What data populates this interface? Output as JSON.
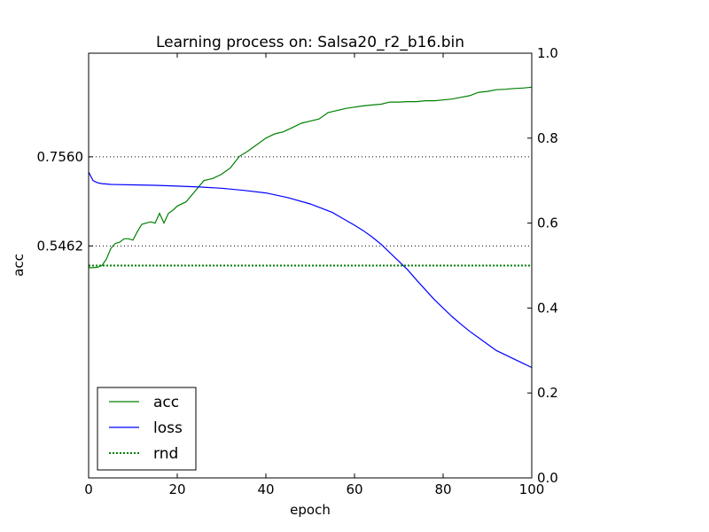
{
  "chart_data": {
    "type": "line",
    "title": "Learning process on: Salsa20_r2_b16.bin",
    "xlabel": "epoch",
    "ylabel": "acc",
    "x_ticks": [
      "0",
      "20",
      "40",
      "60",
      "80",
      "100"
    ],
    "left_ticks": [
      "0.7560",
      "0.5462"
    ],
    "right_ticks": [
      "0.0",
      "0.2",
      "0.4",
      "0.6",
      "0.8",
      "1.0"
    ],
    "xlim": [
      0,
      100
    ],
    "ylim": [
      0,
      1
    ],
    "ref_lines": [
      0.756,
      0.5462
    ],
    "legend_position": "lower-left",
    "series": [
      {
        "name": "acc",
        "axis": "right",
        "color": "#008000",
        "style": "solid",
        "x": [
          0,
          1,
          2,
          3,
          4,
          5,
          6,
          7,
          8,
          9,
          10,
          11,
          12,
          13,
          14,
          15,
          16,
          17,
          18,
          19,
          20,
          22,
          24,
          26,
          28,
          30,
          32,
          34,
          36,
          38,
          40,
          42,
          44,
          46,
          48,
          50,
          52,
          54,
          56,
          58,
          60,
          62,
          64,
          66,
          68,
          70,
          72,
          74,
          76,
          78,
          80,
          82,
          84,
          86,
          88,
          90,
          92,
          94,
          96,
          98,
          100
        ],
        "values": [
          0.495,
          0.495,
          0.496,
          0.5,
          0.515,
          0.54,
          0.552,
          0.555,
          0.563,
          0.563,
          0.56,
          0.58,
          0.597,
          0.6,
          0.603,
          0.6,
          0.623,
          0.6,
          0.623,
          0.63,
          0.64,
          0.65,
          0.675,
          0.7,
          0.705,
          0.715,
          0.73,
          0.757,
          0.77,
          0.785,
          0.8,
          0.81,
          0.815,
          0.825,
          0.835,
          0.84,
          0.845,
          0.86,
          0.865,
          0.87,
          0.873,
          0.876,
          0.878,
          0.88,
          0.885,
          0.885,
          0.886,
          0.886,
          0.888,
          0.888,
          0.89,
          0.892,
          0.896,
          0.9,
          0.908,
          0.91,
          0.914,
          0.915,
          0.917,
          0.918,
          0.92
        ]
      },
      {
        "name": "loss",
        "axis": "right",
        "color": "#0000ff",
        "style": "solid",
        "x": [
          0,
          1,
          2,
          3,
          4,
          5,
          10,
          15,
          20,
          25,
          30,
          35,
          40,
          45,
          50,
          55,
          60,
          62,
          64,
          66,
          68,
          70,
          72,
          74,
          76,
          78,
          80,
          82,
          84,
          86,
          88,
          90,
          92,
          94,
          96,
          98,
          100
        ],
        "values": [
          0.72,
          0.7,
          0.695,
          0.693,
          0.692,
          0.691,
          0.69,
          0.689,
          0.687,
          0.685,
          0.682,
          0.677,
          0.671,
          0.66,
          0.645,
          0.625,
          0.595,
          0.582,
          0.567,
          0.55,
          0.53,
          0.51,
          0.49,
          0.466,
          0.443,
          0.42,
          0.4,
          0.38,
          0.362,
          0.345,
          0.33,
          0.315,
          0.3,
          0.29,
          0.28,
          0.27,
          0.26
        ]
      },
      {
        "name": "rnd",
        "axis": "right",
        "color": "#008000",
        "style": "dotted",
        "x": [
          0,
          100
        ],
        "values": [
          0.5,
          0.5
        ]
      }
    ]
  }
}
